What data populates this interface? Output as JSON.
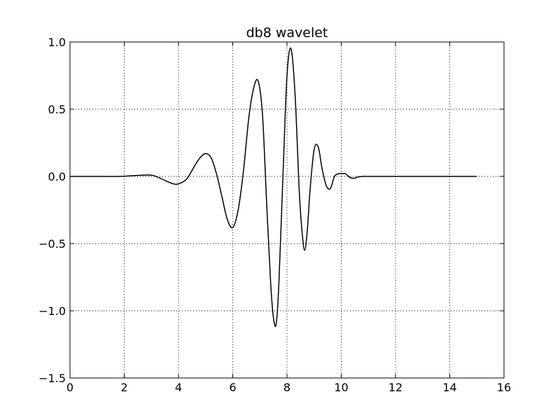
{
  "chart_data": {
    "type": "line",
    "title": "db8 wavelet",
    "xlabel": "",
    "ylabel": "",
    "xlim": [
      0,
      16
    ],
    "ylim": [
      -1.5,
      1.0
    ],
    "xticks": [
      "0",
      "2",
      "4",
      "6",
      "8",
      "10",
      "12",
      "14",
      "16"
    ],
    "yticks": [
      "1.0",
      "0.5",
      "0.0",
      "−0.5",
      "−1.0",
      "−1.5"
    ],
    "grid": true,
    "line_color": "#000000",
    "series": [
      {
        "x": [
          0,
          1.0,
          1.8,
          2.3,
          2.8,
          3.1,
          3.5,
          3.8,
          4.0,
          4.3,
          4.6,
          4.8,
          5.0,
          5.2,
          5.4,
          5.6,
          5.8,
          6.0,
          6.2,
          6.4,
          6.6,
          6.8,
          6.95,
          7.1,
          7.25,
          7.4,
          7.5,
          7.6,
          7.7,
          7.85,
          8.0,
          8.15,
          8.3,
          8.45,
          8.55,
          8.65,
          8.75,
          8.85,
          9.0,
          9.15,
          9.3,
          9.45,
          9.6,
          9.75,
          9.9,
          10.0,
          10.15,
          10.3,
          10.45,
          10.6,
          10.8,
          11.0,
          12.0,
          13.0,
          14.0,
          15.0
        ],
        "y": [
          0.0,
          0.0,
          0.0,
          0.005,
          0.01,
          0.005,
          -0.03,
          -0.055,
          -0.055,
          -0.02,
          0.08,
          0.14,
          0.17,
          0.14,
          0.02,
          -0.15,
          -0.32,
          -0.38,
          -0.25,
          0.05,
          0.45,
          0.68,
          0.7,
          0.45,
          -0.2,
          -0.8,
          -1.05,
          -1.1,
          -0.8,
          0.0,
          0.75,
          0.95,
          0.6,
          -0.1,
          -0.4,
          -0.55,
          -0.4,
          -0.1,
          0.2,
          0.22,
          0.05,
          -0.07,
          -0.09,
          0.0,
          0.02,
          0.02,
          0.02,
          -0.005,
          -0.015,
          -0.005,
          0.0,
          0.0,
          0.0,
          0.0,
          0.0,
          0.0
        ]
      }
    ]
  }
}
